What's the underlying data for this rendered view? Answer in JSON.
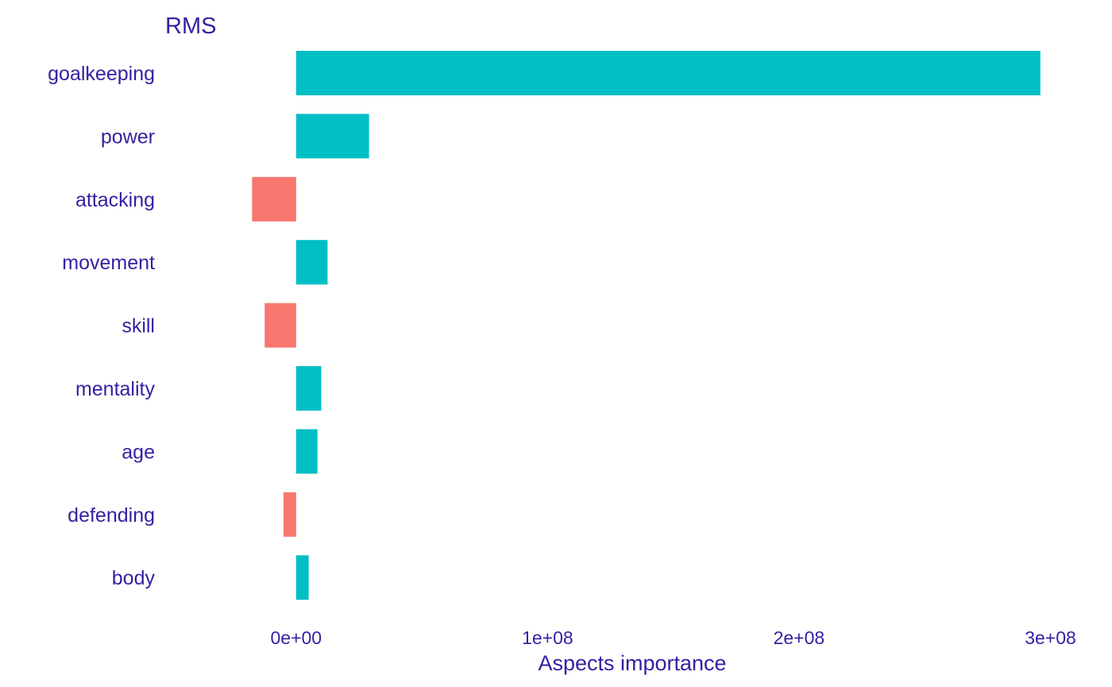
{
  "chart_data": {
    "type": "bar",
    "orientation": "horizontal",
    "title": "RMS",
    "xlabel": "Aspects importance",
    "ylabel": "",
    "categories": [
      "goalkeeping",
      "power",
      "attacking",
      "movement",
      "skill",
      "mentality",
      "age",
      "defending",
      "body"
    ],
    "values": [
      296000000,
      29000000,
      -17500000,
      12500000,
      -12500000,
      10000000,
      8500000,
      -5000000,
      5000000
    ],
    "xlim": [
      -35000000,
      303000000
    ],
    "xticks": [
      0,
      100000000,
      200000000,
      300000000
    ],
    "xtick_labels": [
      "0e+00",
      "1e+08",
      "2e+08",
      "3e+08"
    ],
    "grid": false,
    "legend": "none",
    "colors": {
      "positive": "#00BFC4",
      "negative": "#F8766D",
      "text": "#371ea3",
      "background": "#ffffff"
    }
  }
}
